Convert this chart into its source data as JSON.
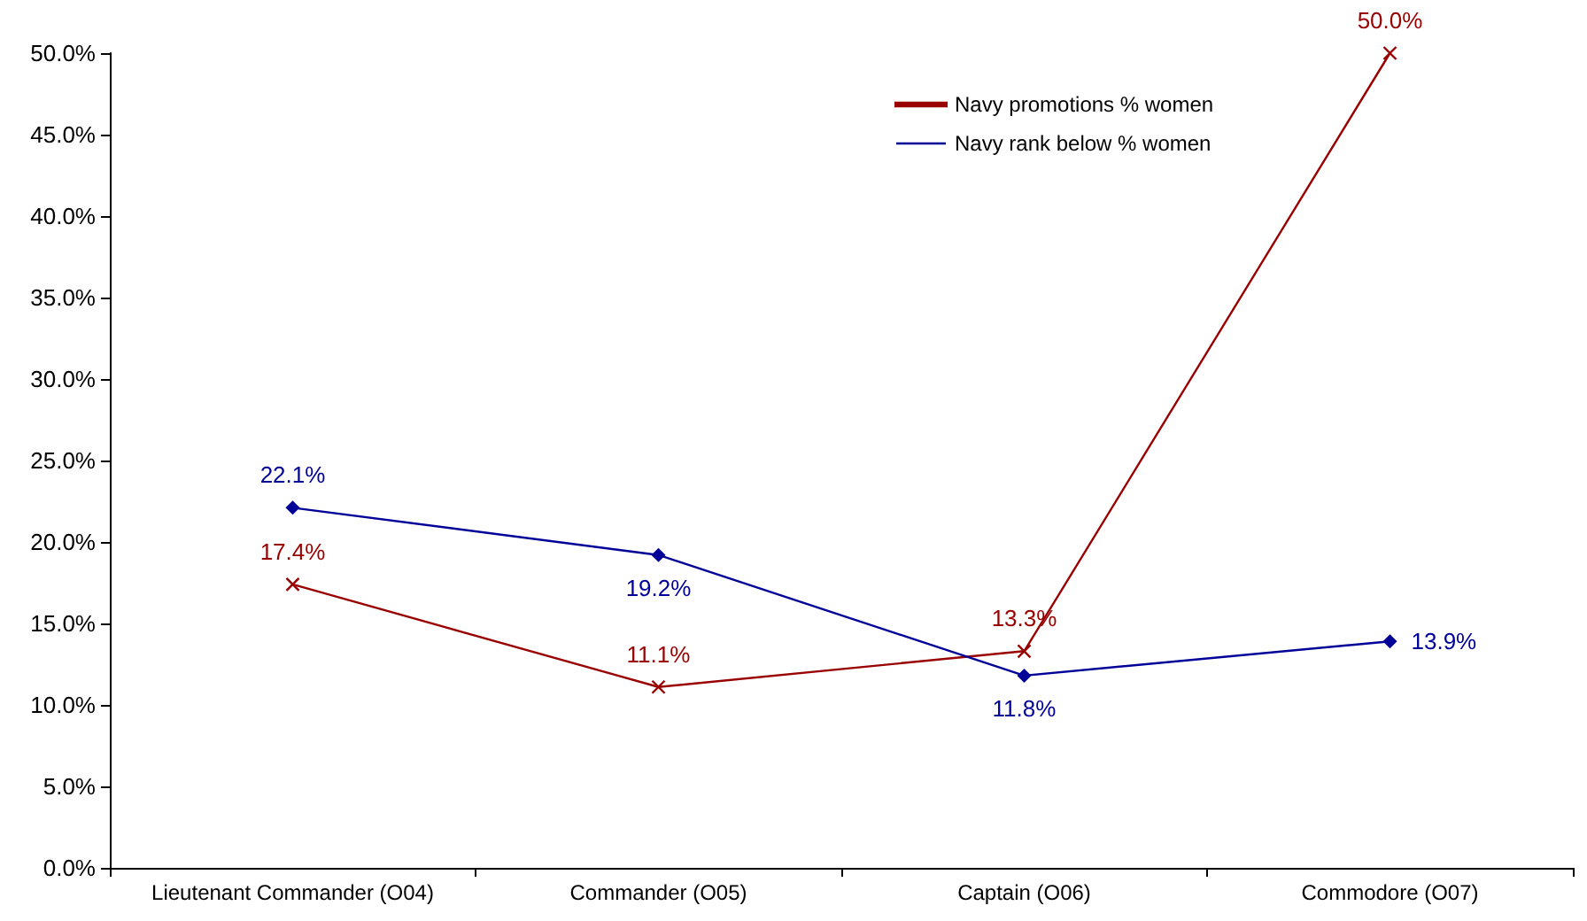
{
  "chart_data": {
    "type": "line",
    "categories": [
      "Lieutenant Commander (O04)",
      "Commander (O05)",
      "Captain (O06)",
      "Commodore (O07)"
    ],
    "series": [
      {
        "name": "Navy promotions % women",
        "color": "#990000",
        "marker": "cross",
        "values": [
          17.4,
          11.1,
          13.3,
          50.0
        ],
        "value_labels": [
          "17.4%",
          "11.1%",
          "13.3%",
          "50.0%"
        ]
      },
      {
        "name": "Navy rank below % women",
        "color": "#000099",
        "marker": "diamond",
        "values": [
          22.1,
          19.2,
          11.8,
          13.9
        ],
        "value_labels": [
          "22.1%",
          "19.2%",
          "11.8%",
          "13.9%"
        ]
      }
    ],
    "ylim": [
      0,
      50
    ],
    "yticks": [
      {
        "value": 0,
        "label": "0.0%"
      },
      {
        "value": 5,
        "label": "5.0%"
      },
      {
        "value": 10,
        "label": "10.0%"
      },
      {
        "value": 15,
        "label": "15.0%"
      },
      {
        "value": 20,
        "label": "20.0%"
      },
      {
        "value": 25,
        "label": "25.0%"
      },
      {
        "value": 30,
        "label": "30.0%"
      },
      {
        "value": 35,
        "label": "35.0%"
      },
      {
        "value": 40,
        "label": "40.0%"
      },
      {
        "value": 45,
        "label": "45.0%"
      },
      {
        "value": 50,
        "label": "50.0%"
      }
    ],
    "grid": false,
    "legend": "top right",
    "line_style": "solid"
  }
}
